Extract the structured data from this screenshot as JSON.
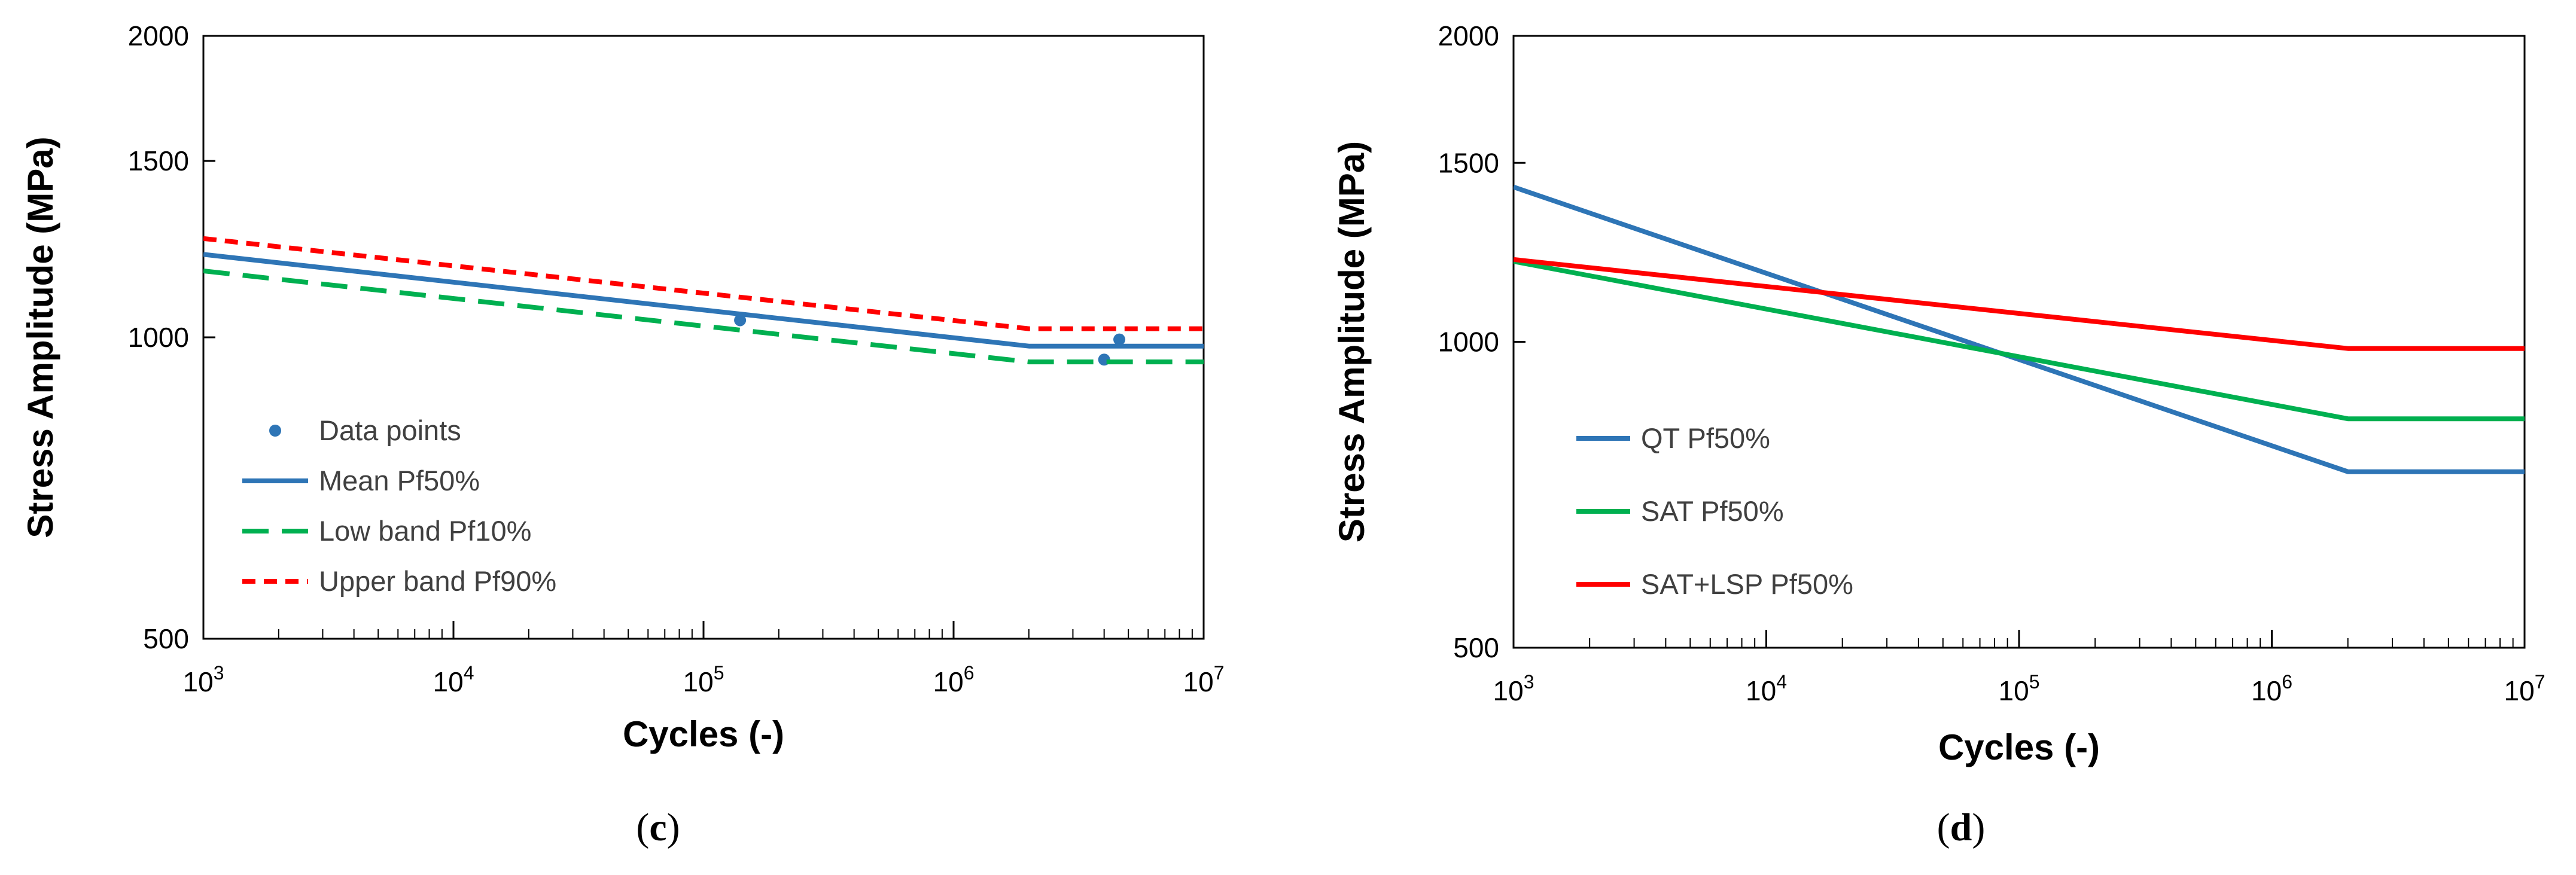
{
  "chart_data": [
    {
      "id": "c",
      "type": "line",
      "scale": {
        "x": "log",
        "y": "log"
      },
      "xlim": [
        1000,
        10000000
      ],
      "ylim": [
        500,
        2000
      ],
      "x_ticks": [
        {
          "value": 1000,
          "base": "10",
          "exp": "3"
        },
        {
          "value": 10000,
          "base": "10",
          "exp": "4"
        },
        {
          "value": 100000,
          "base": "10",
          "exp": "5"
        },
        {
          "value": 1000000,
          "base": "10",
          "exp": "6"
        },
        {
          "value": 10000000,
          "base": "10",
          "exp": "7"
        }
      ],
      "y_ticks": [
        {
          "value": 500,
          "label": "500"
        },
        {
          "value": 1000,
          "label": "1000"
        },
        {
          "value": 1500,
          "label": "1500"
        },
        {
          "value": 2000,
          "label": "2000"
        }
      ],
      "xlabel": "Cycles (-)",
      "ylabel": "Stress Amplitude (MPa)",
      "caption": {
        "open": "(",
        "letter": "c",
        "close": ")"
      },
      "legend_position": "lower-left",
      "series": [
        {
          "name": "Data points",
          "kind": "scatter",
          "color": "#2e75b6",
          "x": [
            140000,
            4000000,
            4600000
          ],
          "y": [
            1040,
            950,
            995
          ]
        },
        {
          "name": "Mean Pf50%",
          "kind": "line",
          "dash": "solid",
          "color": "#2e75b6",
          "x": [
            1000,
            2000000,
            10000000
          ],
          "y": [
            1210,
            980,
            980
          ]
        },
        {
          "name": "Low band Pf10%",
          "kind": "line",
          "dash": "long-dash",
          "color": "#00b050",
          "x": [
            1000,
            2000000,
            10000000
          ],
          "y": [
            1165,
            945,
            945
          ]
        },
        {
          "name": "Upper band Pf90%",
          "kind": "line",
          "dash": "short-dash",
          "color": "#ff0000",
          "x": [
            1000,
            2000000,
            10000000
          ],
          "y": [
            1255,
            1020,
            1020
          ]
        }
      ]
    },
    {
      "id": "d",
      "type": "line",
      "scale": {
        "x": "log",
        "y": "log"
      },
      "xlim": [
        1000,
        10000000
      ],
      "ylim": [
        500,
        2000
      ],
      "x_ticks": [
        {
          "value": 1000,
          "base": "10",
          "exp": "3"
        },
        {
          "value": 10000,
          "base": "10",
          "exp": "4"
        },
        {
          "value": 100000,
          "base": "10",
          "exp": "5"
        },
        {
          "value": 1000000,
          "base": "10",
          "exp": "6"
        },
        {
          "value": 10000000,
          "base": "10",
          "exp": "7"
        }
      ],
      "y_ticks": [
        {
          "value": 500,
          "label": "500"
        },
        {
          "value": 1000,
          "label": "1000"
        },
        {
          "value": 1500,
          "label": "1500"
        },
        {
          "value": 2000,
          "label": "2000"
        }
      ],
      "xlabel": "Cycles (-)",
      "ylabel": "Stress Amplitude (MPa)",
      "caption": {
        "open": "(",
        "letter": "d",
        "close": ")"
      },
      "legend_position": "lower-left",
      "series": [
        {
          "name": "QT Pf50%",
          "kind": "line",
          "dash": "solid",
          "color": "#2e75b6",
          "x": [
            1000,
            2000000,
            10000000
          ],
          "y": [
            1420,
            745,
            745
          ]
        },
        {
          "name": "SAT Pf50%",
          "kind": "line",
          "dash": "solid",
          "color": "#00b050",
          "x": [
            1000,
            2000000,
            10000000
          ],
          "y": [
            1200,
            840,
            840
          ]
        },
        {
          "name": "SAT+LSP Pf50%",
          "kind": "line",
          "dash": "solid",
          "color": "#ff0000",
          "x": [
            1000,
            2000000,
            10000000
          ],
          "y": [
            1205,
            985,
            985
          ]
        }
      ]
    }
  ]
}
